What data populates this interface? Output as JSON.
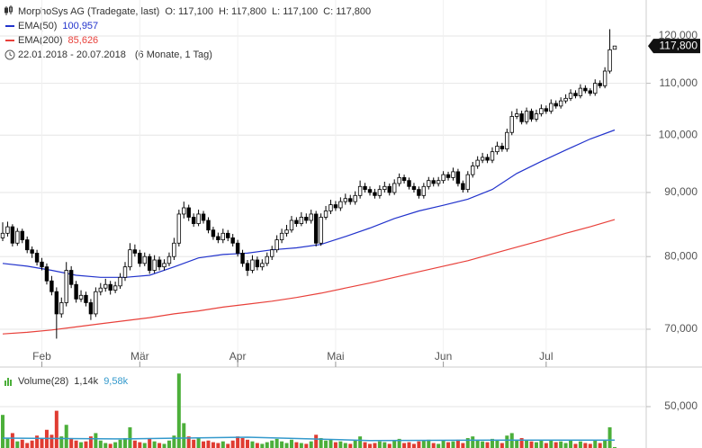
{
  "chart_data": [
    {
      "type": "candlestick",
      "title": "MorphoSys AG (Tradegate, last)",
      "ohlc_header": [
        "O: 117,100",
        "H: 117,800",
        "L: 117,100",
        "C: 117,800"
      ],
      "date_range": "22.01.2018 - 20.07.2018",
      "period": "(6 Monate, 1 Tag)",
      "categories": [
        null,
        null,
        null,
        null,
        null,
        null,
        null,
        null,
        "Feb",
        null,
        null,
        null,
        null,
        null,
        null,
        null,
        null,
        null,
        null,
        null,
        null,
        null,
        null,
        null,
        null,
        null,
        null,
        null,
        "Mär",
        null,
        null,
        null,
        null,
        null,
        null,
        null,
        null,
        null,
        null,
        null,
        null,
        null,
        null,
        null,
        null,
        null,
        null,
        null,
        "Apr",
        null,
        null,
        null,
        null,
        null,
        null,
        null,
        null,
        null,
        null,
        null,
        null,
        null,
        null,
        null,
        null,
        null,
        null,
        null,
        "Mai",
        null,
        null,
        null,
        null,
        null,
        null,
        null,
        null,
        null,
        null,
        null,
        null,
        null,
        null,
        null,
        null,
        null,
        null,
        null,
        null,
        null,
        "Jun",
        null,
        null,
        null,
        null,
        null,
        null,
        null,
        null,
        null,
        null,
        null,
        null,
        null,
        null,
        null,
        null,
        null,
        null,
        null,
        null,
        "Jul",
        null,
        null,
        null,
        null,
        null,
        null,
        null,
        null,
        null,
        null,
        null,
        null,
        null,
        null
      ],
      "ohlc": [
        [
          82800,
          85200,
          82300,
          83500
        ],
        [
          83500,
          85300,
          83000,
          84500
        ],
        [
          84500,
          84900,
          81500,
          82000
        ],
        [
          82000,
          84300,
          81600,
          83800
        ],
        [
          83800,
          84200,
          82000,
          82500
        ],
        [
          82500,
          83000,
          80500,
          81000
        ],
        [
          81000,
          81500,
          79800,
          80500
        ],
        [
          80500,
          81000,
          78700,
          79200
        ],
        [
          79200,
          79800,
          78000,
          78500
        ],
        [
          78500,
          79000,
          76000,
          76500
        ],
        [
          76500,
          77200,
          74500,
          75000
        ],
        [
          75000,
          75600,
          68800,
          72000
        ],
        [
          72000,
          74200,
          71500,
          73500
        ],
        [
          73500,
          79200,
          73000,
          78000
        ],
        [
          78000,
          78600,
          75500,
          76000
        ],
        [
          76000,
          76500,
          73500,
          74000
        ],
        [
          74000,
          75200,
          73600,
          74500
        ],
        [
          74500,
          75000,
          73000,
          73500
        ],
        [
          73500,
          74000,
          71200,
          72000
        ],
        [
          72000,
          75600,
          71600,
          75000
        ],
        [
          75000,
          76200,
          74500,
          75500
        ],
        [
          75500,
          76800,
          75000,
          76000
        ],
        [
          76000,
          76500,
          74600,
          75200
        ],
        [
          75200,
          76400,
          74800,
          75800
        ],
        [
          75800,
          77600,
          75400,
          77000
        ],
        [
          77000,
          79200,
          76500,
          78500
        ],
        [
          78500,
          82000,
          78000,
          81000
        ],
        [
          81000,
          81800,
          80000,
          80500
        ],
        [
          80500,
          81000,
          78500,
          79000
        ],
        [
          79000,
          80600,
          78600,
          80000
        ],
        [
          80000,
          80400,
          77500,
          78000
        ],
        [
          78000,
          80200,
          77600,
          79500
        ],
        [
          79500,
          80000,
          78000,
          78500
        ],
        [
          78500,
          79600,
          78000,
          79000
        ],
        [
          79000,
          80600,
          78600,
          80000
        ],
        [
          80000,
          82800,
          79500,
          82000
        ],
        [
          82000,
          87200,
          81500,
          86500
        ],
        [
          86500,
          88500,
          85800,
          87500
        ],
        [
          87500,
          88000,
          85400,
          86000
        ],
        [
          86000,
          86600,
          84500,
          85000
        ],
        [
          85000,
          87200,
          84600,
          86500
        ],
        [
          86500,
          87000,
          85000,
          85500
        ],
        [
          85500,
          86000,
          83500,
          84000
        ],
        [
          84000,
          84500,
          82500,
          83000
        ],
        [
          83000,
          83600,
          82000,
          82500
        ],
        [
          82500,
          84200,
          82000,
          83500
        ],
        [
          83500,
          84000,
          82300,
          82800
        ],
        [
          82800,
          83400,
          81500,
          82000
        ],
        [
          82000,
          82500,
          80000,
          80500
        ],
        [
          80500,
          81000,
          78500,
          79000
        ],
        [
          79000,
          79500,
          77200,
          78000
        ],
        [
          78000,
          80200,
          77600,
          79500
        ],
        [
          79500,
          80000,
          78000,
          78500
        ],
        [
          78500,
          79600,
          78000,
          79000
        ],
        [
          79000,
          80600,
          78600,
          80000
        ],
        [
          80000,
          81600,
          79500,
          81000
        ],
        [
          81000,
          83200,
          80600,
          82500
        ],
        [
          82500,
          84200,
          82000,
          83500
        ],
        [
          83500,
          84800,
          83000,
          84000
        ],
        [
          84000,
          86200,
          83600,
          85500
        ],
        [
          85500,
          86000,
          84500,
          85000
        ],
        [
          85000,
          86800,
          84600,
          86000
        ],
        [
          86000,
          86600,
          85000,
          85500
        ],
        [
          85500,
          87200,
          85000,
          86500
        ],
        [
          86500,
          87000,
          81500,
          82000
        ],
        [
          82000,
          86600,
          81600,
          86000
        ],
        [
          86000,
          87800,
          85600,
          87000
        ],
        [
          87000,
          88800,
          86500,
          88000
        ],
        [
          88000,
          88600,
          87000,
          87500
        ],
        [
          87500,
          89200,
          87000,
          88500
        ],
        [
          88500,
          89800,
          88000,
          89000
        ],
        [
          89000,
          89600,
          88000,
          88500
        ],
        [
          88500,
          90200,
          88000,
          89500
        ],
        [
          89500,
          92000,
          89000,
          91000
        ],
        [
          91000,
          91600,
          90000,
          90500
        ],
        [
          90500,
          91000,
          89500,
          90000
        ],
        [
          90000,
          90600,
          89000,
          89500
        ],
        [
          89500,
          91200,
          89000,
          90500
        ],
        [
          90500,
          91800,
          90000,
          91000
        ],
        [
          91000,
          91500,
          89500,
          90000
        ],
        [
          90000,
          92200,
          89600,
          91500
        ],
        [
          91500,
          93200,
          91000,
          92500
        ],
        [
          92500,
          93000,
          91500,
          92000
        ],
        [
          92000,
          92500,
          90500,
          91000
        ],
        [
          91000,
          91600,
          90000,
          90500
        ],
        [
          90500,
          91000,
          89000,
          89500
        ],
        [
          89500,
          91600,
          89000,
          91000
        ],
        [
          91000,
          92600,
          90500,
          92000
        ],
        [
          92000,
          92500,
          91000,
          91500
        ],
        [
          91500,
          92600,
          91000,
          92000
        ],
        [
          92000,
          93600,
          91500,
          93000
        ],
        [
          93000,
          93500,
          92000,
          92500
        ],
        [
          92500,
          94200,
          92000,
          93500
        ],
        [
          93500,
          94000,
          91000,
          91500
        ],
        [
          91500,
          92000,
          90000,
          90500
        ],
        [
          90500,
          93600,
          90000,
          93000
        ],
        [
          93000,
          95200,
          92500,
          94500
        ],
        [
          94500,
          96200,
          94000,
          95500
        ],
        [
          95500,
          96800,
          95000,
          96000
        ],
        [
          96000,
          96600,
          95000,
          95500
        ],
        [
          95500,
          97800,
          95000,
          97000
        ],
        [
          97000,
          98800,
          96500,
          98000
        ],
        [
          98000,
          98600,
          97000,
          97500
        ],
        [
          97500,
          101200,
          97000,
          100500
        ],
        [
          100500,
          104500,
          100000,
          103500
        ],
        [
          103500,
          105000,
          103000,
          104000
        ],
        [
          104000,
          104600,
          102000,
          102500
        ],
        [
          102500,
          105200,
          102000,
          104500
        ],
        [
          104500,
          105000,
          102500,
          103000
        ],
        [
          103000,
          104800,
          102500,
          104000
        ],
        [
          104000,
          105800,
          103500,
          105000
        ],
        [
          105000,
          105600,
          104000,
          104500
        ],
        [
          104500,
          106800,
          104000,
          106000
        ],
        [
          106000,
          106600,
          105000,
          105500
        ],
        [
          105500,
          107200,
          105000,
          106500
        ],
        [
          106500,
          107800,
          106000,
          107000
        ],
        [
          107000,
          108800,
          106500,
          108000
        ],
        [
          108000,
          108600,
          107000,
          107500
        ],
        [
          107500,
          109800,
          107000,
          109000
        ],
        [
          109000,
          109600,
          108000,
          108500
        ],
        [
          108500,
          109000,
          107500,
          108000
        ],
        [
          108000,
          110800,
          107500,
          110000
        ],
        [
          110000,
          110600,
          109000,
          109500
        ],
        [
          109500,
          113300,
          109000,
          112500
        ],
        [
          112500,
          121500,
          112000,
          117000
        ],
        [
          117100,
          117800,
          117100,
          117800
        ]
      ],
      "up_color": "#ffffff",
      "down_color": "#000000",
      "series": [
        {
          "name": "EMA(50)",
          "color": "#2233cc",
          "value_label": "100,957",
          "x": [
            0,
            5,
            10,
            15,
            20,
            25,
            30,
            35,
            40,
            45,
            50,
            55,
            60,
            65,
            70,
            75,
            80,
            85,
            90,
            95,
            100,
            105,
            110,
            115,
            120,
            125
          ],
          "values": [
            79000,
            78600,
            78000,
            77300,
            77000,
            77000,
            77300,
            78500,
            79800,
            80300,
            80500,
            81000,
            81300,
            81800,
            83000,
            84300,
            85800,
            87000,
            87900,
            88900,
            90500,
            93200,
            95300,
            97300,
            99300,
            100957
          ]
        },
        {
          "name": "EMA(200)",
          "color": "#e8403a",
          "value_label": "85,626",
          "x": [
            0,
            5,
            10,
            15,
            20,
            25,
            30,
            35,
            40,
            45,
            50,
            55,
            60,
            65,
            70,
            75,
            80,
            85,
            90,
            95,
            100,
            105,
            110,
            115,
            120,
            125
          ],
          "values": [
            69400,
            69600,
            69900,
            70300,
            70700,
            71100,
            71500,
            72000,
            72400,
            72900,
            73300,
            73700,
            74200,
            74800,
            75500,
            76200,
            77000,
            77800,
            78600,
            79400,
            80400,
            81400,
            82400,
            83500,
            84500,
            85626
          ]
        }
      ],
      "log_scale": true,
      "grid": true,
      "ylim": [
        65300,
        128200
      ],
      "yticks": [
        {
          "value": 70000,
          "label": "70,000"
        },
        {
          "value": 80000,
          "label": "80,000"
        },
        {
          "value": 90000,
          "label": "90,000"
        },
        {
          "value": 100000,
          "label": "100,000"
        },
        {
          "value": 110000,
          "label": "110,000"
        },
        {
          "value": 120000,
          "label": "120,000"
        }
      ],
      "last_label": {
        "value": 117800,
        "label": "117,800"
      }
    },
    {
      "type": "bar",
      "title": "Volume(28)",
      "value_label": "1,14k",
      "values": [
        40000,
        12000,
        18000,
        8000,
        10000,
        6000,
        9000,
        15000,
        11000,
        22000,
        16000,
        45000,
        14000,
        28000,
        12000,
        9000,
        7000,
        8000,
        14000,
        18000,
        9000,
        6000,
        5000,
        7000,
        10000,
        12000,
        25000,
        9000,
        7000,
        6000,
        11000,
        8000,
        6000,
        5000,
        9000,
        15000,
        90000,
        30000,
        14000,
        10000,
        12000,
        8000,
        9000,
        7000,
        6000,
        8000,
        5000,
        9000,
        14000,
        12000,
        10000,
        8000,
        6000,
        5000,
        7000,
        9000,
        11000,
        8000,
        6000,
        10000,
        7000,
        6000,
        5000,
        8000,
        16000,
        12000,
        9000,
        10000,
        7000,
        8000,
        6000,
        5000,
        9000,
        14000,
        7000,
        5000,
        6000,
        8000,
        7000,
        5000,
        9000,
        11000,
        6000,
        7000,
        5000,
        8000,
        9000,
        10000,
        6000,
        5000,
        9000,
        7000,
        8000,
        10000,
        6000,
        12000,
        14000,
        10000,
        8000,
        7000,
        11000,
        9000,
        6000,
        15000,
        18000,
        9000,
        12000,
        10000,
        8000,
        7000,
        9000,
        6000,
        10000,
        7000,
        8000,
        6000,
        9000,
        5000,
        8000,
        6000,
        5000,
        9000,
        6000,
        10000,
        25000,
        1140
      ],
      "up_color": "#4caf3a",
      "down_color": "#e03c32",
      "ma": {
        "color": "#3399cc",
        "value_label": "9,58k",
        "x": [
          0,
          25,
          50,
          75,
          100,
          125
        ],
        "values": [
          12000,
          11000,
          13000,
          9000,
          9500,
          9580
        ]
      },
      "grid": true,
      "ylim": [
        0,
        93500
      ],
      "yticks": [
        {
          "value": 50000,
          "label": "50,000"
        }
      ]
    }
  ]
}
